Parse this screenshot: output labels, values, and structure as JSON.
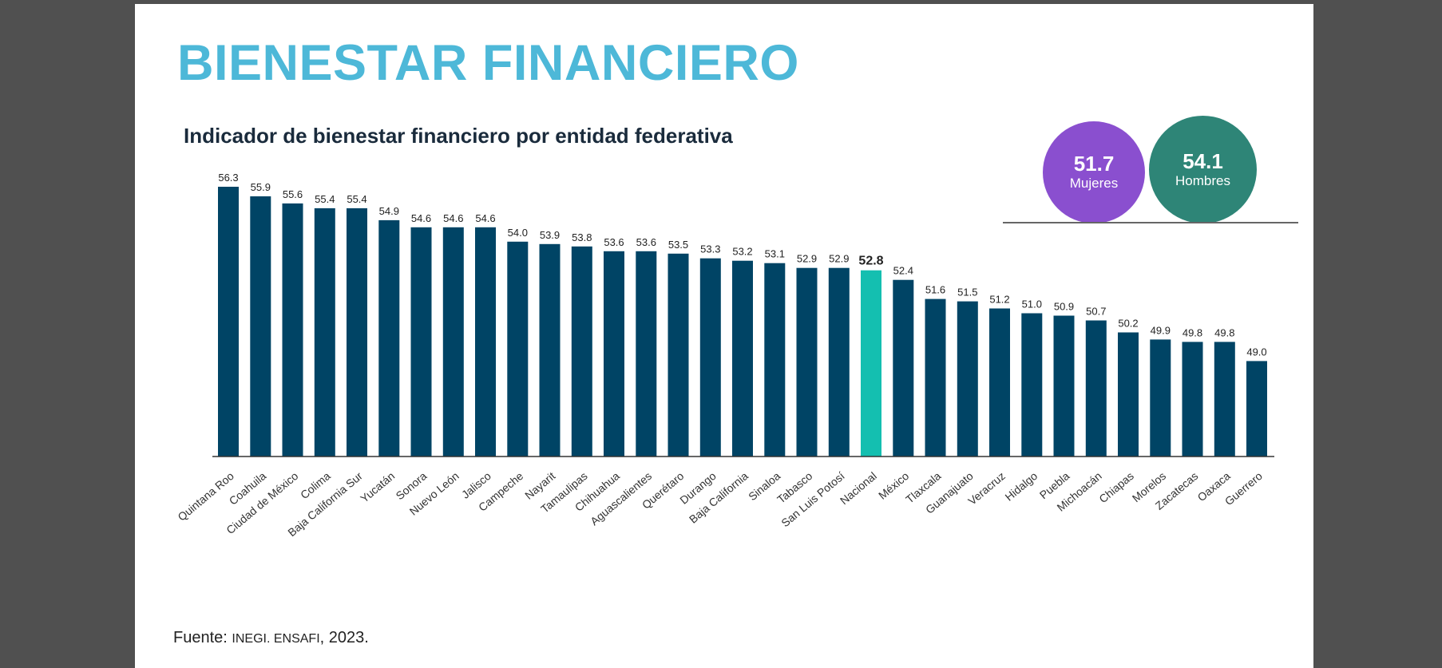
{
  "title": "BIENESTAR FINANCIERO",
  "subtitle": "Indicador de bienestar financiero por entidad federativa",
  "summary": {
    "women": {
      "value": "51.7",
      "label": "Mujeres",
      "color": "#8a4fcf"
    },
    "men": {
      "value": "54.1",
      "label": "Hombres",
      "color": "#2e8577"
    }
  },
  "source": {
    "prefix": "Fuente: ",
    "org": "INEGI. ENSAFI",
    "year": ", 2023."
  },
  "colors": {
    "bar": "#004465",
    "highlight": "#14bfb0"
  },
  "chart_data": {
    "type": "bar",
    "title": "Indicador de bienestar financiero por entidad federativa",
    "xlabel": "",
    "ylabel": "",
    "ylim": [
      45,
      56.3
    ],
    "highlight": "Nacional",
    "categories": [
      "Quintana Roo",
      "Coahuila",
      "Ciudad de México",
      "Colima",
      "Baja California Sur",
      "Yucatán",
      "Sonora",
      "Nuevo León",
      "Jalisco",
      "Campeche",
      "Nayarit",
      "Tamaulipas",
      "Chihuahua",
      "Aguascalientes",
      "Querétaro",
      "Durango",
      "Baja California",
      "Sinaloa",
      "Tabasco",
      "San Luis Potosí",
      "Nacional",
      "México",
      "Tlaxcala",
      "Guanajuato",
      "Veracruz",
      "Hidalgo",
      "Puebla",
      "Michoacán",
      "Chiapas",
      "Morelos",
      "Zacatecas",
      "Oaxaca",
      "Guerrero"
    ],
    "values": [
      56.3,
      55.9,
      55.6,
      55.4,
      55.4,
      54.9,
      54.6,
      54.6,
      54.6,
      54.0,
      53.9,
      53.8,
      53.6,
      53.6,
      53.5,
      53.3,
      53.2,
      53.1,
      52.9,
      52.9,
      52.8,
      52.4,
      51.6,
      51.5,
      51.2,
      51.0,
      50.9,
      50.7,
      50.2,
      49.9,
      49.8,
      49.8,
      49.0
    ]
  }
}
